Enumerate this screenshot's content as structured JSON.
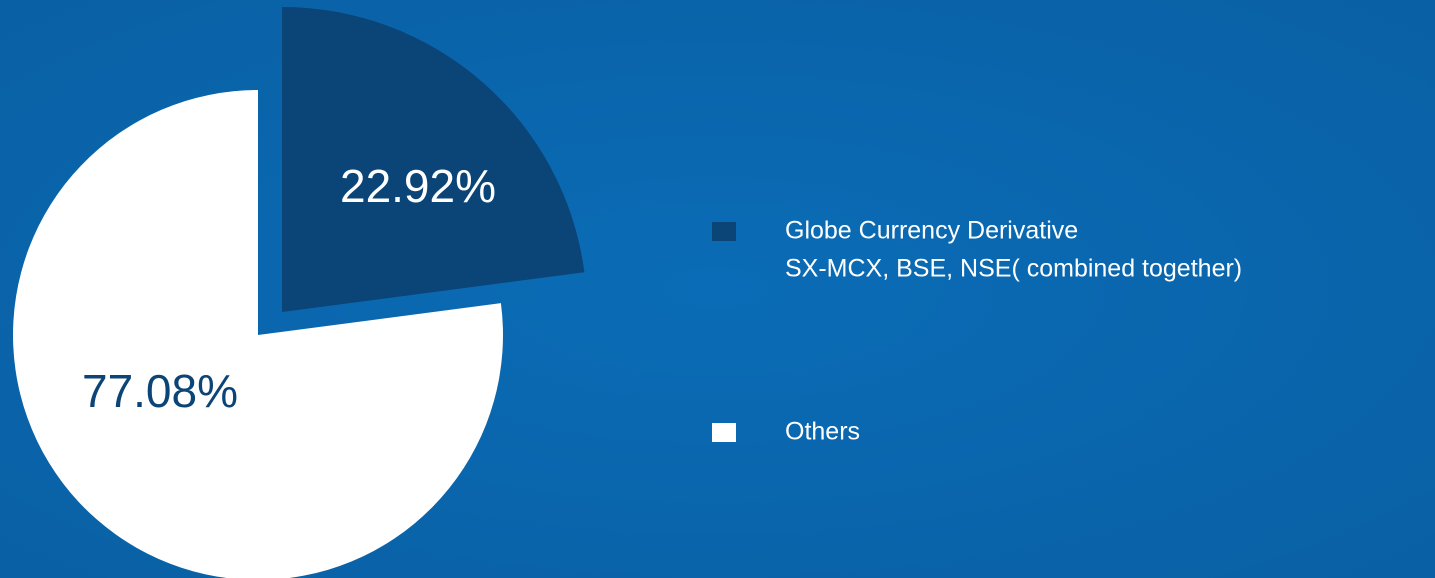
{
  "chart_data": {
    "type": "pie",
    "categories": [
      [
        "Globe Currency Derivative",
        "SX-MCX, BSE, NSE( combined together)"
      ],
      [
        "Others"
      ]
    ],
    "values": [
      22.92,
      77.08
    ],
    "value_labels": [
      "22.92%",
      "77.08%"
    ],
    "colors": [
      "#0b4476",
      "#ffffff"
    ]
  }
}
